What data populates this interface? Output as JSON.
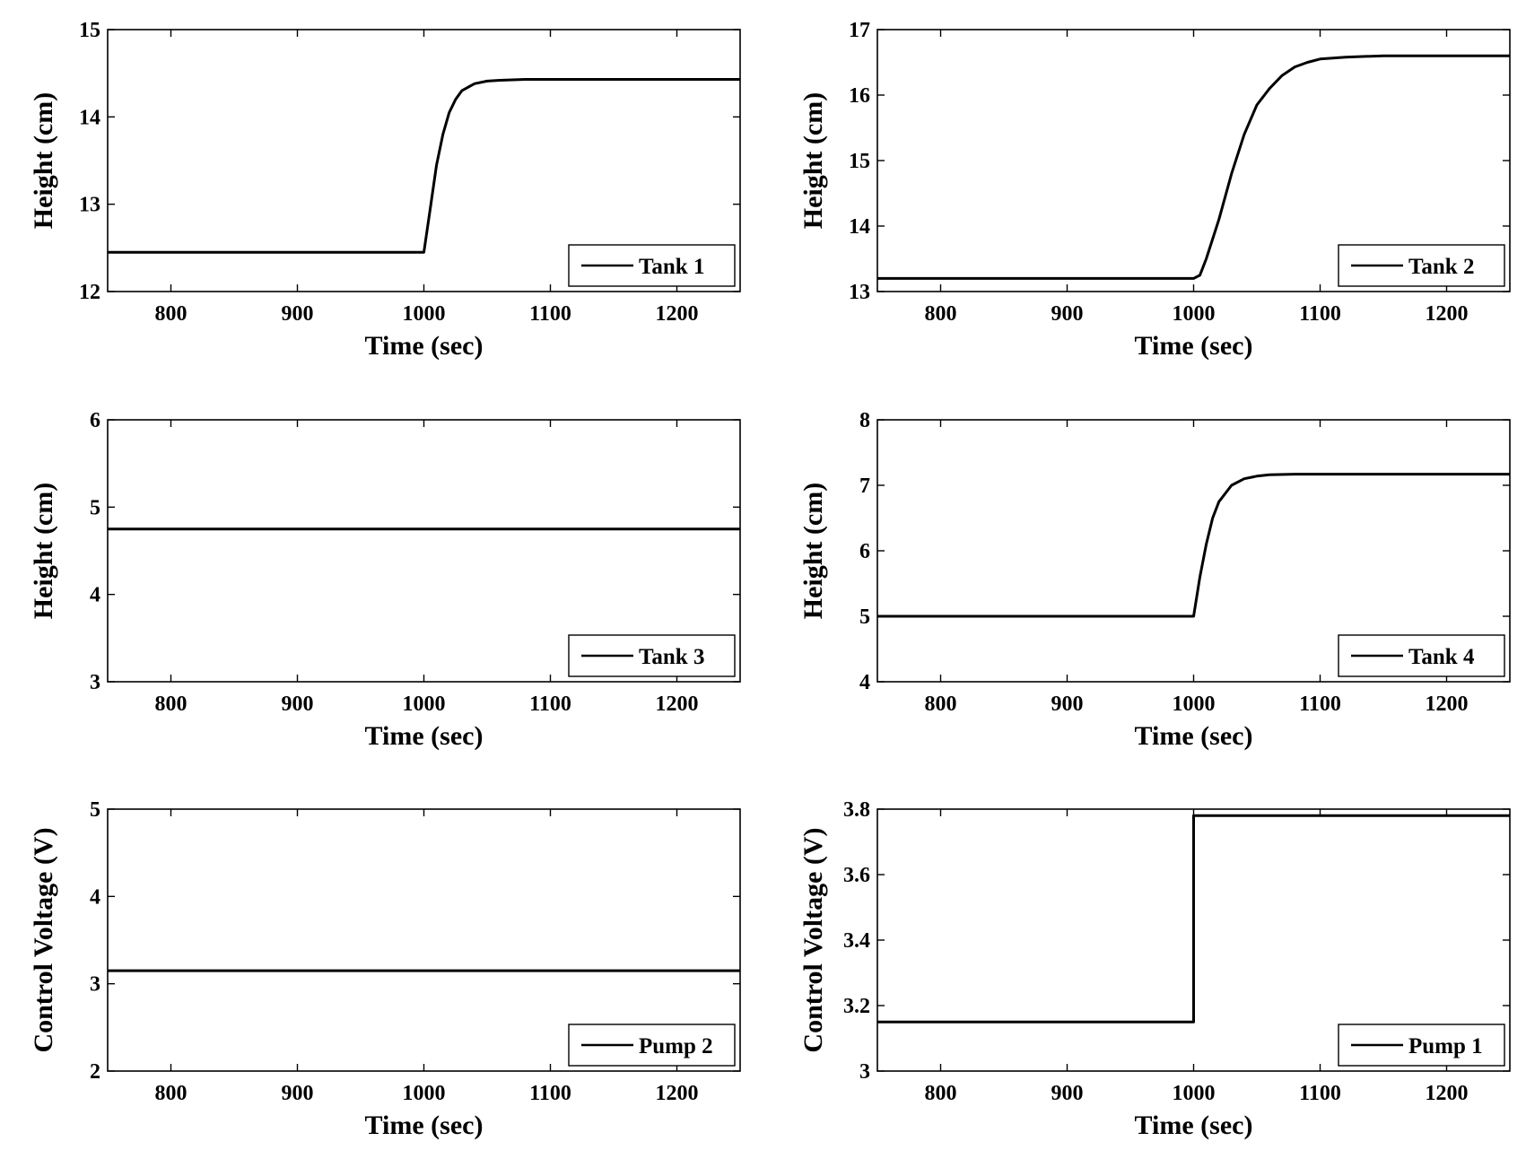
{
  "chart_data": [
    {
      "type": "line",
      "xlabel": "Time (sec)",
      "ylabel": "Height (cm)",
      "xlim": [
        750,
        1250
      ],
      "ylim": [
        12,
        15
      ],
      "xticks": [
        800,
        900,
        1000,
        1100,
        1200
      ],
      "yticks": [
        12,
        13,
        14,
        15
      ],
      "legend": "bottom-right",
      "series": [
        {
          "name": "Tank 1",
          "x": [
            750,
            999,
            1000,
            1005,
            1010,
            1015,
            1020,
            1025,
            1030,
            1040,
            1050,
            1060,
            1080,
            1100,
            1150,
            1200,
            1250
          ],
          "y": [
            12.45,
            12.45,
            12.45,
            12.95,
            13.45,
            13.8,
            14.05,
            14.2,
            14.3,
            14.38,
            14.41,
            14.42,
            14.43,
            14.43,
            14.43,
            14.43,
            14.43
          ]
        }
      ]
    },
    {
      "type": "line",
      "xlabel": "Time (sec)",
      "ylabel": "Height (cm)",
      "xlim": [
        750,
        1250
      ],
      "ylim": [
        13,
        17
      ],
      "xticks": [
        800,
        900,
        1000,
        1100,
        1200
      ],
      "yticks": [
        13,
        14,
        15,
        16,
        17
      ],
      "legend": "bottom-right",
      "series": [
        {
          "name": "Tank 2",
          "x": [
            750,
            1000,
            1005,
            1010,
            1020,
            1030,
            1040,
            1050,
            1060,
            1070,
            1080,
            1090,
            1100,
            1120,
            1150,
            1200,
            1250
          ],
          "y": [
            13.2,
            13.2,
            13.25,
            13.5,
            14.1,
            14.8,
            15.4,
            15.85,
            16.1,
            16.3,
            16.43,
            16.5,
            16.55,
            16.58,
            16.6,
            16.6,
            16.6
          ]
        }
      ]
    },
    {
      "type": "line",
      "xlabel": "Time (sec)",
      "ylabel": "Height (cm)",
      "xlim": [
        750,
        1250
      ],
      "ylim": [
        3,
        6
      ],
      "xticks": [
        800,
        900,
        1000,
        1100,
        1200
      ],
      "yticks": [
        3,
        4,
        5,
        6
      ],
      "legend": "bottom-right",
      "series": [
        {
          "name": "Tank 3",
          "x": [
            750,
            1250
          ],
          "y": [
            4.75,
            4.75
          ]
        }
      ]
    },
    {
      "type": "line",
      "xlabel": "Time (sec)",
      "ylabel": "Height (cm)",
      "xlim": [
        750,
        1250
      ],
      "ylim": [
        4,
        8
      ],
      "xticks": [
        800,
        900,
        1000,
        1100,
        1200
      ],
      "yticks": [
        4,
        5,
        6,
        7,
        8
      ],
      "legend": "bottom-right",
      "series": [
        {
          "name": "Tank 4",
          "x": [
            750,
            999,
            1000,
            1005,
            1010,
            1015,
            1020,
            1030,
            1040,
            1050,
            1060,
            1080,
            1100,
            1150,
            1200,
            1250
          ],
          "y": [
            5.0,
            5.0,
            5.0,
            5.6,
            6.1,
            6.5,
            6.75,
            7.0,
            7.1,
            7.14,
            7.16,
            7.17,
            7.17,
            7.17,
            7.17,
            7.17
          ]
        }
      ]
    },
    {
      "type": "line",
      "xlabel": "Time (sec)",
      "ylabel": "Control Voltage (V)",
      "xlim": [
        750,
        1250
      ],
      "ylim": [
        2,
        5
      ],
      "xticks": [
        800,
        900,
        1000,
        1100,
        1200
      ],
      "yticks": [
        2,
        3,
        4,
        5
      ],
      "legend": "bottom-right",
      "series": [
        {
          "name": "Pump 2",
          "x": [
            750,
            1250
          ],
          "y": [
            3.15,
            3.15
          ]
        }
      ]
    },
    {
      "type": "line",
      "xlabel": "Time (sec)",
      "ylabel": "Control Voltage (V)",
      "xlim": [
        750,
        1250
      ],
      "ylim": [
        3,
        3.8
      ],
      "xticks": [
        800,
        900,
        1000,
        1100,
        1200
      ],
      "yticks": [
        3,
        3.2,
        3.4,
        3.6,
        3.8
      ],
      "legend": "bottom-right",
      "series": [
        {
          "name": "Pump 1",
          "x": [
            750,
            1000,
            1000,
            1250
          ],
          "y": [
            3.15,
            3.15,
            3.78,
            3.78
          ]
        }
      ]
    }
  ]
}
